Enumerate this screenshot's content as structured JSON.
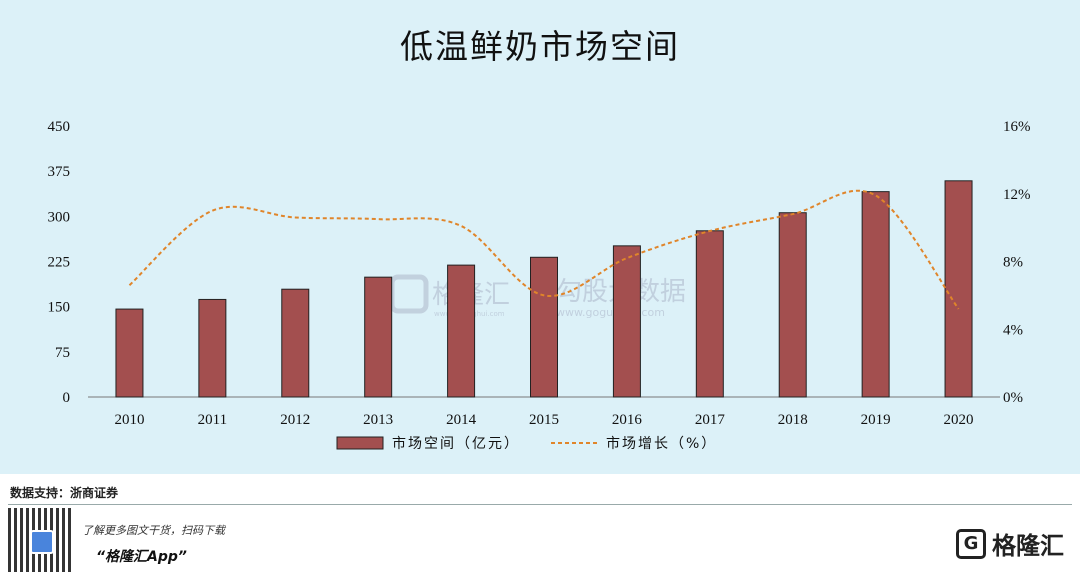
{
  "chart_data": {
    "type": "bar",
    "title": "低温鲜奶市场空间",
    "categories": [
      "2010",
      "2011",
      "2012",
      "2013",
      "2014",
      "2015",
      "2016",
      "2017",
      "2018",
      "2019",
      "2020"
    ],
    "series": [
      {
        "name": "市场空间（亿元）",
        "type": "bar",
        "axis": "left",
        "color": "#a34f4f",
        "values": [
          146,
          162,
          179,
          199,
          219,
          232,
          251,
          276,
          306,
          341,
          359
        ]
      },
      {
        "name": "市场增长（%）",
        "type": "line",
        "axis": "right",
        "color": "#e0852a",
        "values": [
          6.6,
          11.0,
          10.6,
          10.5,
          10.1,
          6.0,
          8.2,
          9.8,
          10.8,
          11.9,
          5.2
        ]
      }
    ],
    "left_axis": {
      "ylim": [
        0,
        450
      ],
      "ticks": [
        "0",
        "75",
        "150",
        "225",
        "300",
        "375",
        "450"
      ]
    },
    "right_axis": {
      "ylim": [
        0,
        16
      ],
      "ticks": [
        "0%",
        "4%",
        "8%",
        "12%",
        "16%"
      ]
    },
    "grid": false,
    "legend_position": "bottom"
  },
  "watermark": {
    "brand": "格隆汇",
    "brand_url": "www.gelonghui.com",
    "data_brand": "勾股大数据",
    "data_url": "www.gogudata.com"
  },
  "footer": {
    "source": "数据支持：浙商证券",
    "promo_line": "了解更多图文干货，扫码下载",
    "promo_app": "“格隆汇App”",
    "brand_icon": "G",
    "brand_name": "格隆汇"
  }
}
